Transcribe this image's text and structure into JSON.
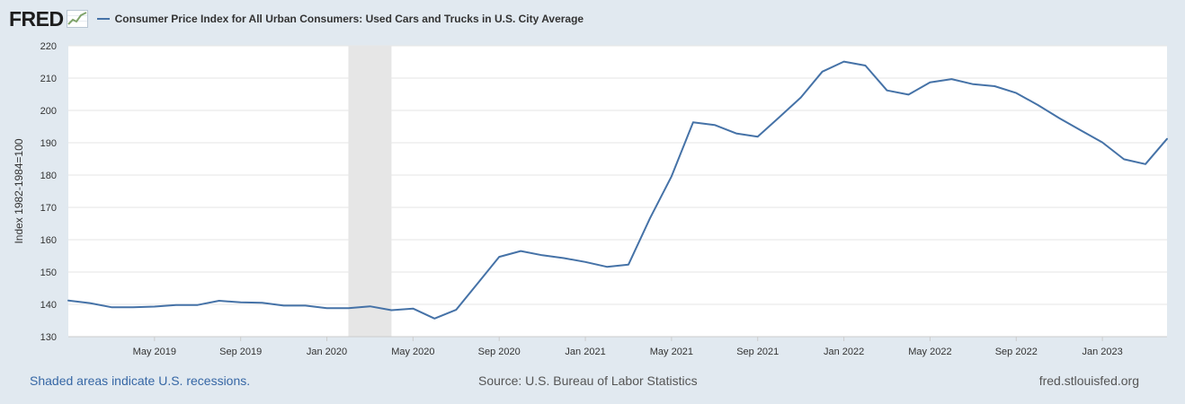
{
  "logo": {
    "text": "FRED"
  },
  "footer": {
    "recession_note": "Shaded areas indicate U.S. recessions.",
    "source": "Source: U.S. Bureau of Labor Statistics",
    "site": "fred.stlouisfed.org"
  },
  "colors": {
    "line": "#4572a7",
    "background": "#e1e9f0",
    "plot": "#ffffff",
    "recession": "#e6e6e6",
    "grid": "#e6e6e6"
  },
  "chart_data": {
    "type": "line",
    "title": "",
    "ylabel": "Index 1982-1984=100",
    "xlabel": "",
    "ylim": [
      130,
      220
    ],
    "yticks": [
      130,
      140,
      150,
      160,
      170,
      180,
      190,
      200,
      210,
      220
    ],
    "xticks": [
      "May 2019",
      "Sep 2019",
      "Jan 2020",
      "May 2020",
      "Sep 2020",
      "Jan 2021",
      "May 2021",
      "Sep 2021",
      "Jan 2022",
      "May 2022",
      "Sep 2022",
      "Jan 2023"
    ],
    "grid": true,
    "legend_position": "top-left",
    "recessions": [
      {
        "start": "2020-02",
        "end": "2020-04"
      }
    ],
    "series": [
      {
        "name": "Consumer Price Index for All Urban Consumers: Used Cars and Trucks in U.S. City Average",
        "x": [
          "2019-01",
          "2019-02",
          "2019-03",
          "2019-04",
          "2019-05",
          "2019-06",
          "2019-07",
          "2019-08",
          "2019-09",
          "2019-10",
          "2019-11",
          "2019-12",
          "2020-01",
          "2020-02",
          "2020-03",
          "2020-04",
          "2020-05",
          "2020-06",
          "2020-07",
          "2020-08",
          "2020-09",
          "2020-10",
          "2020-11",
          "2020-12",
          "2021-01",
          "2021-02",
          "2021-03",
          "2021-04",
          "2021-05",
          "2021-06",
          "2021-07",
          "2021-08",
          "2021-09",
          "2021-10",
          "2021-11",
          "2021-12",
          "2022-01",
          "2022-02",
          "2022-03",
          "2022-04",
          "2022-05",
          "2022-06",
          "2022-07",
          "2022-08",
          "2022-09",
          "2022-10",
          "2022-11",
          "2022-12",
          "2023-01",
          "2023-02",
          "2023-03",
          "2023-04"
        ],
        "values": [
          141.2,
          140.4,
          139.1,
          139.1,
          139.3,
          139.8,
          139.8,
          141.1,
          140.6,
          140.5,
          139.6,
          139.6,
          138.8,
          138.8,
          139.4,
          138.2,
          138.7,
          135.6,
          138.3,
          146.5,
          154.7,
          156.5,
          155.2,
          154.3,
          153.1,
          151.6,
          152.3,
          166.6,
          179.6,
          196.3,
          195.5,
          192.9,
          191.9,
          197.9,
          204.0,
          212.0,
          215.1,
          213.9,
          206.2,
          204.9,
          208.7,
          209.7,
          208.1,
          207.5,
          205.4,
          201.7,
          197.6,
          193.8,
          190.1,
          184.9,
          183.4,
          191.2
        ]
      }
    ]
  }
}
